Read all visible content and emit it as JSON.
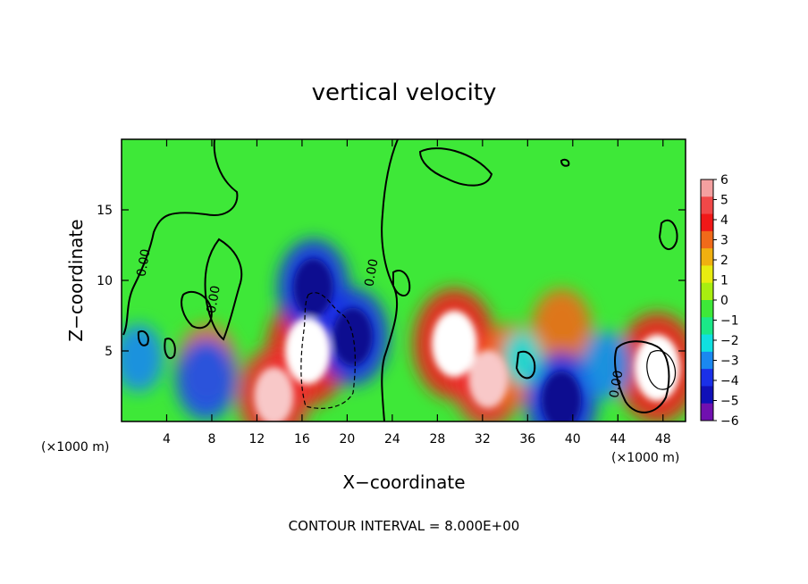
{
  "chart_data": {
    "type": "heatmap",
    "title": "vertical velocity",
    "xlabel": "X−coordinate",
    "ylabel": "Z−coordinate",
    "x_unit": "(×1000 m)",
    "y_unit": "(×1000 m)",
    "x_ticks": [
      4,
      8,
      12,
      16,
      20,
      24,
      28,
      32,
      36,
      40,
      44,
      48
    ],
    "y_ticks": [
      5,
      10,
      15
    ],
    "xlim": [
      0,
      50
    ],
    "ylim": [
      0,
      20
    ],
    "colorbar": {
      "ticks": [
        6,
        5,
        4,
        3,
        2,
        1,
        0,
        -1,
        -2,
        -3,
        -4,
        -5,
        -6
      ],
      "colors": [
        "#f4a0a0",
        "#f04848",
        "#f01818",
        "#f06a1a",
        "#f0b010",
        "#e8ec10",
        "#a8ee10",
        "#3ee838",
        "#1ae888",
        "#10e0e0",
        "#1a88f0",
        "#1a30e8",
        "#1010b8",
        "#7010b0"
      ]
    },
    "contour_labels": [
      {
        "text": "0.00",
        "x": 2.3,
        "y": 11.2
      },
      {
        "text": "0.00",
        "x": 8.5,
        "y": 8.6
      },
      {
        "text": "0.00",
        "x": 22.5,
        "y": 10.5
      },
      {
        "text": "0.00",
        "x": 44.2,
        "y": 2.6
      }
    ],
    "features": [
      {
        "kind": "updraft",
        "x": 16.5,
        "z": 5.0,
        "w": 6
      },
      {
        "kind": "updraft",
        "x": 29.5,
        "z": 5.5,
        "w": 6
      },
      {
        "kind": "updraft",
        "x": 32.5,
        "z": 3.0,
        "w": 5
      },
      {
        "kind": "updraft",
        "x": 34.5,
        "z": 4.0,
        "w": 4
      },
      {
        "kind": "updraft",
        "x": 47.5,
        "z": 3.8,
        "w": 6
      },
      {
        "kind": "updraft",
        "x": 39.0,
        "z": 6.5,
        "w": 4
      },
      {
        "kind": "updraft",
        "x": 13.5,
        "z": 1.8,
        "w": 5
      },
      {
        "kind": "updraft",
        "x": 7.6,
        "z": 4.0,
        "w": 4
      },
      {
        "kind": "downdraft",
        "x": 17.0,
        "z": 9.5,
        "w": -5
      },
      {
        "kind": "downdraft",
        "x": 20.5,
        "z": 6.0,
        "w": -5
      },
      {
        "kind": "downdraft",
        "x": 7.5,
        "z": 3.0,
        "w": -4
      },
      {
        "kind": "downdraft",
        "x": 39.0,
        "z": 1.5,
        "w": -5
      },
      {
        "kind": "downdraft",
        "x": 1.5,
        "z": 4.5,
        "w": -3
      },
      {
        "kind": "downdraft",
        "x": 43.0,
        "z": 4.0,
        "w": -3
      },
      {
        "kind": "downdraft",
        "x": 35.5,
        "z": 4.5,
        "w": -2
      }
    ]
  },
  "footer": "CONTOUR INTERVAL =  8.000E+00"
}
